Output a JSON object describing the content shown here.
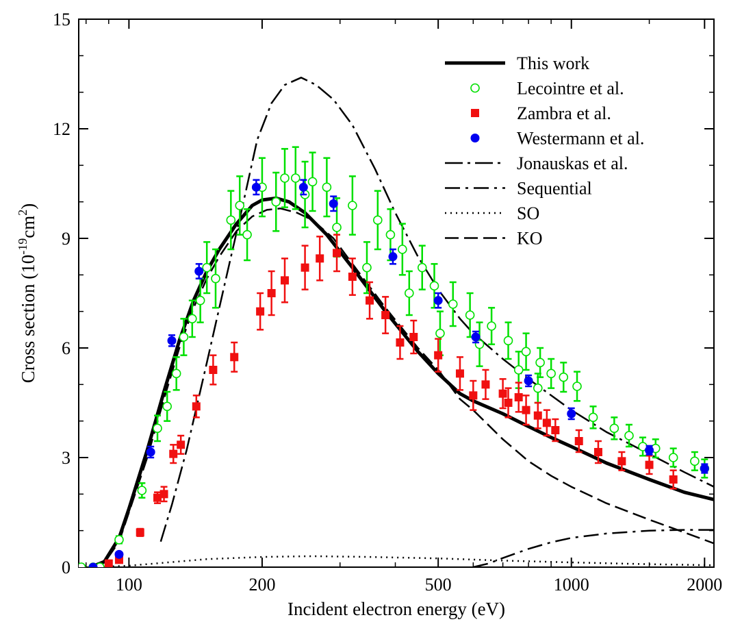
{
  "chart_data": {
    "type": "scatter",
    "xlabel": "Incident electron energy (eV)",
    "ylabel_parts": {
      "base": "Cross section (10",
      "exp1": "-19",
      "mid": "cm",
      "exp2": "2",
      "end": ")"
    },
    "xscale": "log",
    "xlim": [
      77,
      2100
    ],
    "ylim": [
      0,
      15
    ],
    "x_ticks": [
      100,
      200,
      500,
      1000,
      2000
    ],
    "x_tick_labels": [
      "100",
      "200",
      "500",
      "1000",
      "2000"
    ],
    "y_ticks": [
      0,
      3,
      6,
      9,
      12,
      15
    ],
    "y_tick_labels": [
      "0",
      "3",
      "6",
      "9",
      "12",
      "15"
    ],
    "grid": false,
    "legend_position": "top-right",
    "legend": [
      {
        "label": "This work",
        "style": "thick-line"
      },
      {
        "label": "Lecointre et al.",
        "style": "open-circle"
      },
      {
        "label": "Zambra et al.",
        "style": "filled-square"
      },
      {
        "label": "Westermann et al.",
        "style": "filled-circle"
      },
      {
        "label": "Jonauskas et al.",
        "style": "dash-dot-long"
      },
      {
        "label": "Sequential",
        "style": "dash-dot"
      },
      {
        "label": "SO",
        "style": "dotted"
      },
      {
        "label": "KO",
        "style": "dashed"
      }
    ],
    "colors": {
      "lecointre": "#00e000",
      "zambra": "#f01010",
      "westermann": "#0000f0",
      "lines": "#000000"
    },
    "lines": {
      "this_work": [
        [
          82,
          0
        ],
        [
          88,
          0.15
        ],
        [
          95,
          0.8
        ],
        [
          100,
          1.6
        ],
        [
          110,
          3.2
        ],
        [
          120,
          4.8
        ],
        [
          130,
          6.2
        ],
        [
          140,
          7.3
        ],
        [
          150,
          8.1
        ],
        [
          160,
          8.7
        ],
        [
          175,
          9.4
        ],
        [
          190,
          9.9
        ],
        [
          200,
          10.05
        ],
        [
          215,
          10.1
        ],
        [
          230,
          10.0
        ],
        [
          250,
          9.7
        ],
        [
          280,
          9.1
        ],
        [
          320,
          8.2
        ],
        [
          380,
          7.0
        ],
        [
          450,
          5.9
        ],
        [
          500,
          5.3
        ],
        [
          560,
          4.75
        ],
        [
          600,
          4.55
        ],
        [
          700,
          4.2
        ],
        [
          800,
          3.85
        ],
        [
          900,
          3.55
        ],
        [
          1000,
          3.3
        ],
        [
          1200,
          2.85
        ],
        [
          1500,
          2.4
        ],
        [
          1800,
          2.05
        ],
        [
          2100,
          1.85
        ]
      ],
      "jonauskas": [
        [
          118,
          0.7
        ],
        [
          125,
          1.7
        ],
        [
          135,
          3.2
        ],
        [
          150,
          5.6
        ],
        [
          165,
          7.8
        ],
        [
          180,
          9.8
        ],
        [
          195,
          11.7
        ],
        [
          210,
          12.7
        ],
        [
          225,
          13.2
        ],
        [
          245,
          13.4
        ],
        [
          265,
          13.2
        ],
        [
          290,
          12.8
        ],
        [
          320,
          12.1
        ],
        [
          360,
          10.9
        ],
        [
          400,
          9.7
        ],
        [
          450,
          8.5
        ],
        [
          500,
          7.6
        ],
        [
          560,
          6.8
        ],
        [
          600,
          6.4
        ],
        [
          700,
          5.7
        ],
        [
          800,
          5.15
        ],
        [
          900,
          4.7
        ],
        [
          1000,
          4.3
        ],
        [
          1200,
          3.7
        ],
        [
          1500,
          3.1
        ],
        [
          1800,
          2.6
        ],
        [
          2100,
          2.2
        ]
      ],
      "sequential": [
        [
          600,
          0
        ],
        [
          650,
          0.1
        ],
        [
          700,
          0.25
        ],
        [
          800,
          0.5
        ],
        [
          900,
          0.68
        ],
        [
          1000,
          0.8
        ],
        [
          1200,
          0.92
        ],
        [
          1500,
          1.0
        ],
        [
          1800,
          1.02
        ],
        [
          2100,
          1.02
        ]
      ],
      "so": [
        [
          82,
          0
        ],
        [
          100,
          0.04
        ],
        [
          120,
          0.12
        ],
        [
          150,
          0.22
        ],
        [
          200,
          0.28
        ],
        [
          260,
          0.3
        ],
        [
          350,
          0.28
        ],
        [
          500,
          0.24
        ],
        [
          700,
          0.18
        ],
        [
          1000,
          0.13
        ],
        [
          1500,
          0.08
        ],
        [
          2100,
          0.05
        ]
      ],
      "ko": [
        [
          82,
          0
        ],
        [
          88,
          0.12
        ],
        [
          95,
          0.7
        ],
        [
          100,
          1.5
        ],
        [
          110,
          3.0
        ],
        [
          120,
          4.6
        ],
        [
          130,
          6.0
        ],
        [
          140,
          7.1
        ],
        [
          150,
          7.9
        ],
        [
          160,
          8.5
        ],
        [
          175,
          9.2
        ],
        [
          190,
          9.6
        ],
        [
          205,
          9.78
        ],
        [
          220,
          9.82
        ],
        [
          240,
          9.7
        ],
        [
          260,
          9.5
        ],
        [
          290,
          9.0
        ],
        [
          320,
          8.3
        ],
        [
          380,
          7.1
        ],
        [
          450,
          6.0
        ],
        [
          500,
          5.4
        ],
        [
          560,
          4.6
        ],
        [
          600,
          4.3
        ],
        [
          700,
          3.5
        ],
        [
          800,
          2.9
        ],
        [
          900,
          2.5
        ],
        [
          1000,
          2.2
        ],
        [
          1200,
          1.75
        ],
        [
          1500,
          1.3
        ],
        [
          1800,
          0.95
        ],
        [
          2100,
          0.65
        ]
      ]
    },
    "series": [
      {
        "name": "Lecointre et al.",
        "points": [
          [
            78,
            0,
            0
          ],
          [
            83,
            0,
            0
          ],
          [
            86,
            0,
            0
          ],
          [
            95,
            0.75,
            0.1
          ],
          [
            107,
            2.1,
            0.2
          ],
          [
            116,
            3.8,
            0.35
          ],
          [
            122,
            4.4,
            0.4
          ],
          [
            128,
            5.3,
            0.45
          ],
          [
            133,
            6.3,
            0.5
          ],
          [
            139,
            6.8,
            0.5
          ],
          [
            145,
            7.3,
            0.6
          ],
          [
            150,
            8.2,
            0.7
          ],
          [
            157,
            7.9,
            0.8
          ],
          [
            170,
            9.5,
            0.8
          ],
          [
            178,
            9.9,
            0.8
          ],
          [
            185,
            9.1,
            0.7
          ],
          [
            200,
            10.4,
            0.8
          ],
          [
            215,
            10.0,
            0.8
          ],
          [
            225,
            10.65,
            0.8
          ],
          [
            238,
            10.65,
            0.85
          ],
          [
            250,
            10.2,
            0.9
          ],
          [
            260,
            10.55,
            0.8
          ],
          [
            280,
            10.4,
            0.8
          ],
          [
            295,
            9.3,
            0.8
          ],
          [
            320,
            9.9,
            0.8
          ],
          [
            345,
            8.2,
            0.7
          ],
          [
            365,
            9.5,
            0.8
          ],
          [
            390,
            9.1,
            0.7
          ],
          [
            415,
            8.7,
            0.7
          ],
          [
            430,
            7.5,
            0.6
          ],
          [
            460,
            8.2,
            0.6
          ],
          [
            490,
            7.7,
            0.6
          ],
          [
            505,
            6.4,
            0.6
          ],
          [
            540,
            7.2,
            0.6
          ],
          [
            590,
            6.9,
            0.6
          ],
          [
            620,
            6.1,
            0.6
          ],
          [
            660,
            6.6,
            0.5
          ],
          [
            720,
            6.2,
            0.5
          ],
          [
            760,
            5.4,
            0.5
          ],
          [
            790,
            5.9,
            0.5
          ],
          [
            840,
            4.9,
            0.4
          ],
          [
            850,
            5.6,
            0.4
          ],
          [
            900,
            5.3,
            0.4
          ],
          [
            960,
            5.2,
            0.4
          ],
          [
            1030,
            4.95,
            0.4
          ],
          [
            1120,
            4.1,
            0.3
          ],
          [
            1250,
            3.8,
            0.3
          ],
          [
            1350,
            3.6,
            0.3
          ],
          [
            1450,
            3.3,
            0.25
          ],
          [
            1550,
            3.25,
            0.25
          ],
          [
            1700,
            3.0,
            0.25
          ],
          [
            1900,
            2.9,
            0.25
          ],
          [
            2000,
            2.7,
            0.25
          ]
        ]
      },
      {
        "name": "Zambra et al.",
        "points": [
          [
            90,
            0.1,
            0
          ],
          [
            95,
            0.2,
            0
          ],
          [
            106,
            0.95,
            0.1
          ],
          [
            116,
            1.9,
            0.15
          ],
          [
            120,
            2.0,
            0.2
          ],
          [
            126,
            3.1,
            0.25
          ],
          [
            131,
            3.35,
            0.25
          ],
          [
            142,
            4.4,
            0.3
          ],
          [
            155,
            5.4,
            0.4
          ],
          [
            173,
            5.75,
            0.4
          ],
          [
            198,
            7.0,
            0.5
          ],
          [
            210,
            7.5,
            0.6
          ],
          [
            225,
            7.85,
            0.6
          ],
          [
            250,
            8.2,
            0.6
          ],
          [
            270,
            8.45,
            0.6
          ],
          [
            295,
            8.6,
            0.5
          ],
          [
            320,
            7.95,
            0.5
          ],
          [
            350,
            7.3,
            0.5
          ],
          [
            380,
            6.9,
            0.5
          ],
          [
            410,
            6.15,
            0.45
          ],
          [
            440,
            6.3,
            0.45
          ],
          [
            500,
            5.8,
            0.45
          ],
          [
            560,
            5.3,
            0.45
          ],
          [
            600,
            4.7,
            0.4
          ],
          [
            640,
            5.0,
            0.4
          ],
          [
            700,
            4.75,
            0.4
          ],
          [
            720,
            4.5,
            0.4
          ],
          [
            760,
            4.65,
            0.4
          ],
          [
            790,
            4.3,
            0.4
          ],
          [
            840,
            4.15,
            0.35
          ],
          [
            880,
            3.95,
            0.35
          ],
          [
            920,
            3.75,
            0.3
          ],
          [
            1040,
            3.45,
            0.3
          ],
          [
            1150,
            3.15,
            0.3
          ],
          [
            1300,
            2.9,
            0.25
          ],
          [
            1500,
            2.8,
            0.25
          ],
          [
            1700,
            2.4,
            0.25
          ]
        ]
      },
      {
        "name": "Westermann et al.",
        "points": [
          [
            83,
            0,
            0
          ],
          [
            95,
            0.35,
            0.05
          ],
          [
            112,
            3.15,
            0.15
          ],
          [
            125,
            6.2,
            0.15
          ],
          [
            144,
            8.1,
            0.2
          ],
          [
            194,
            10.4,
            0.2
          ],
          [
            248,
            10.4,
            0.2
          ],
          [
            290,
            9.95,
            0.2
          ],
          [
            395,
            8.5,
            0.2
          ],
          [
            500,
            7.3,
            0.2
          ],
          [
            608,
            6.3,
            0.15
          ],
          [
            800,
            5.1,
            0.15
          ],
          [
            1000,
            4.2,
            0.15
          ],
          [
            1500,
            3.2,
            0.12
          ],
          [
            2000,
            2.7,
            0.12
          ]
        ]
      }
    ]
  }
}
